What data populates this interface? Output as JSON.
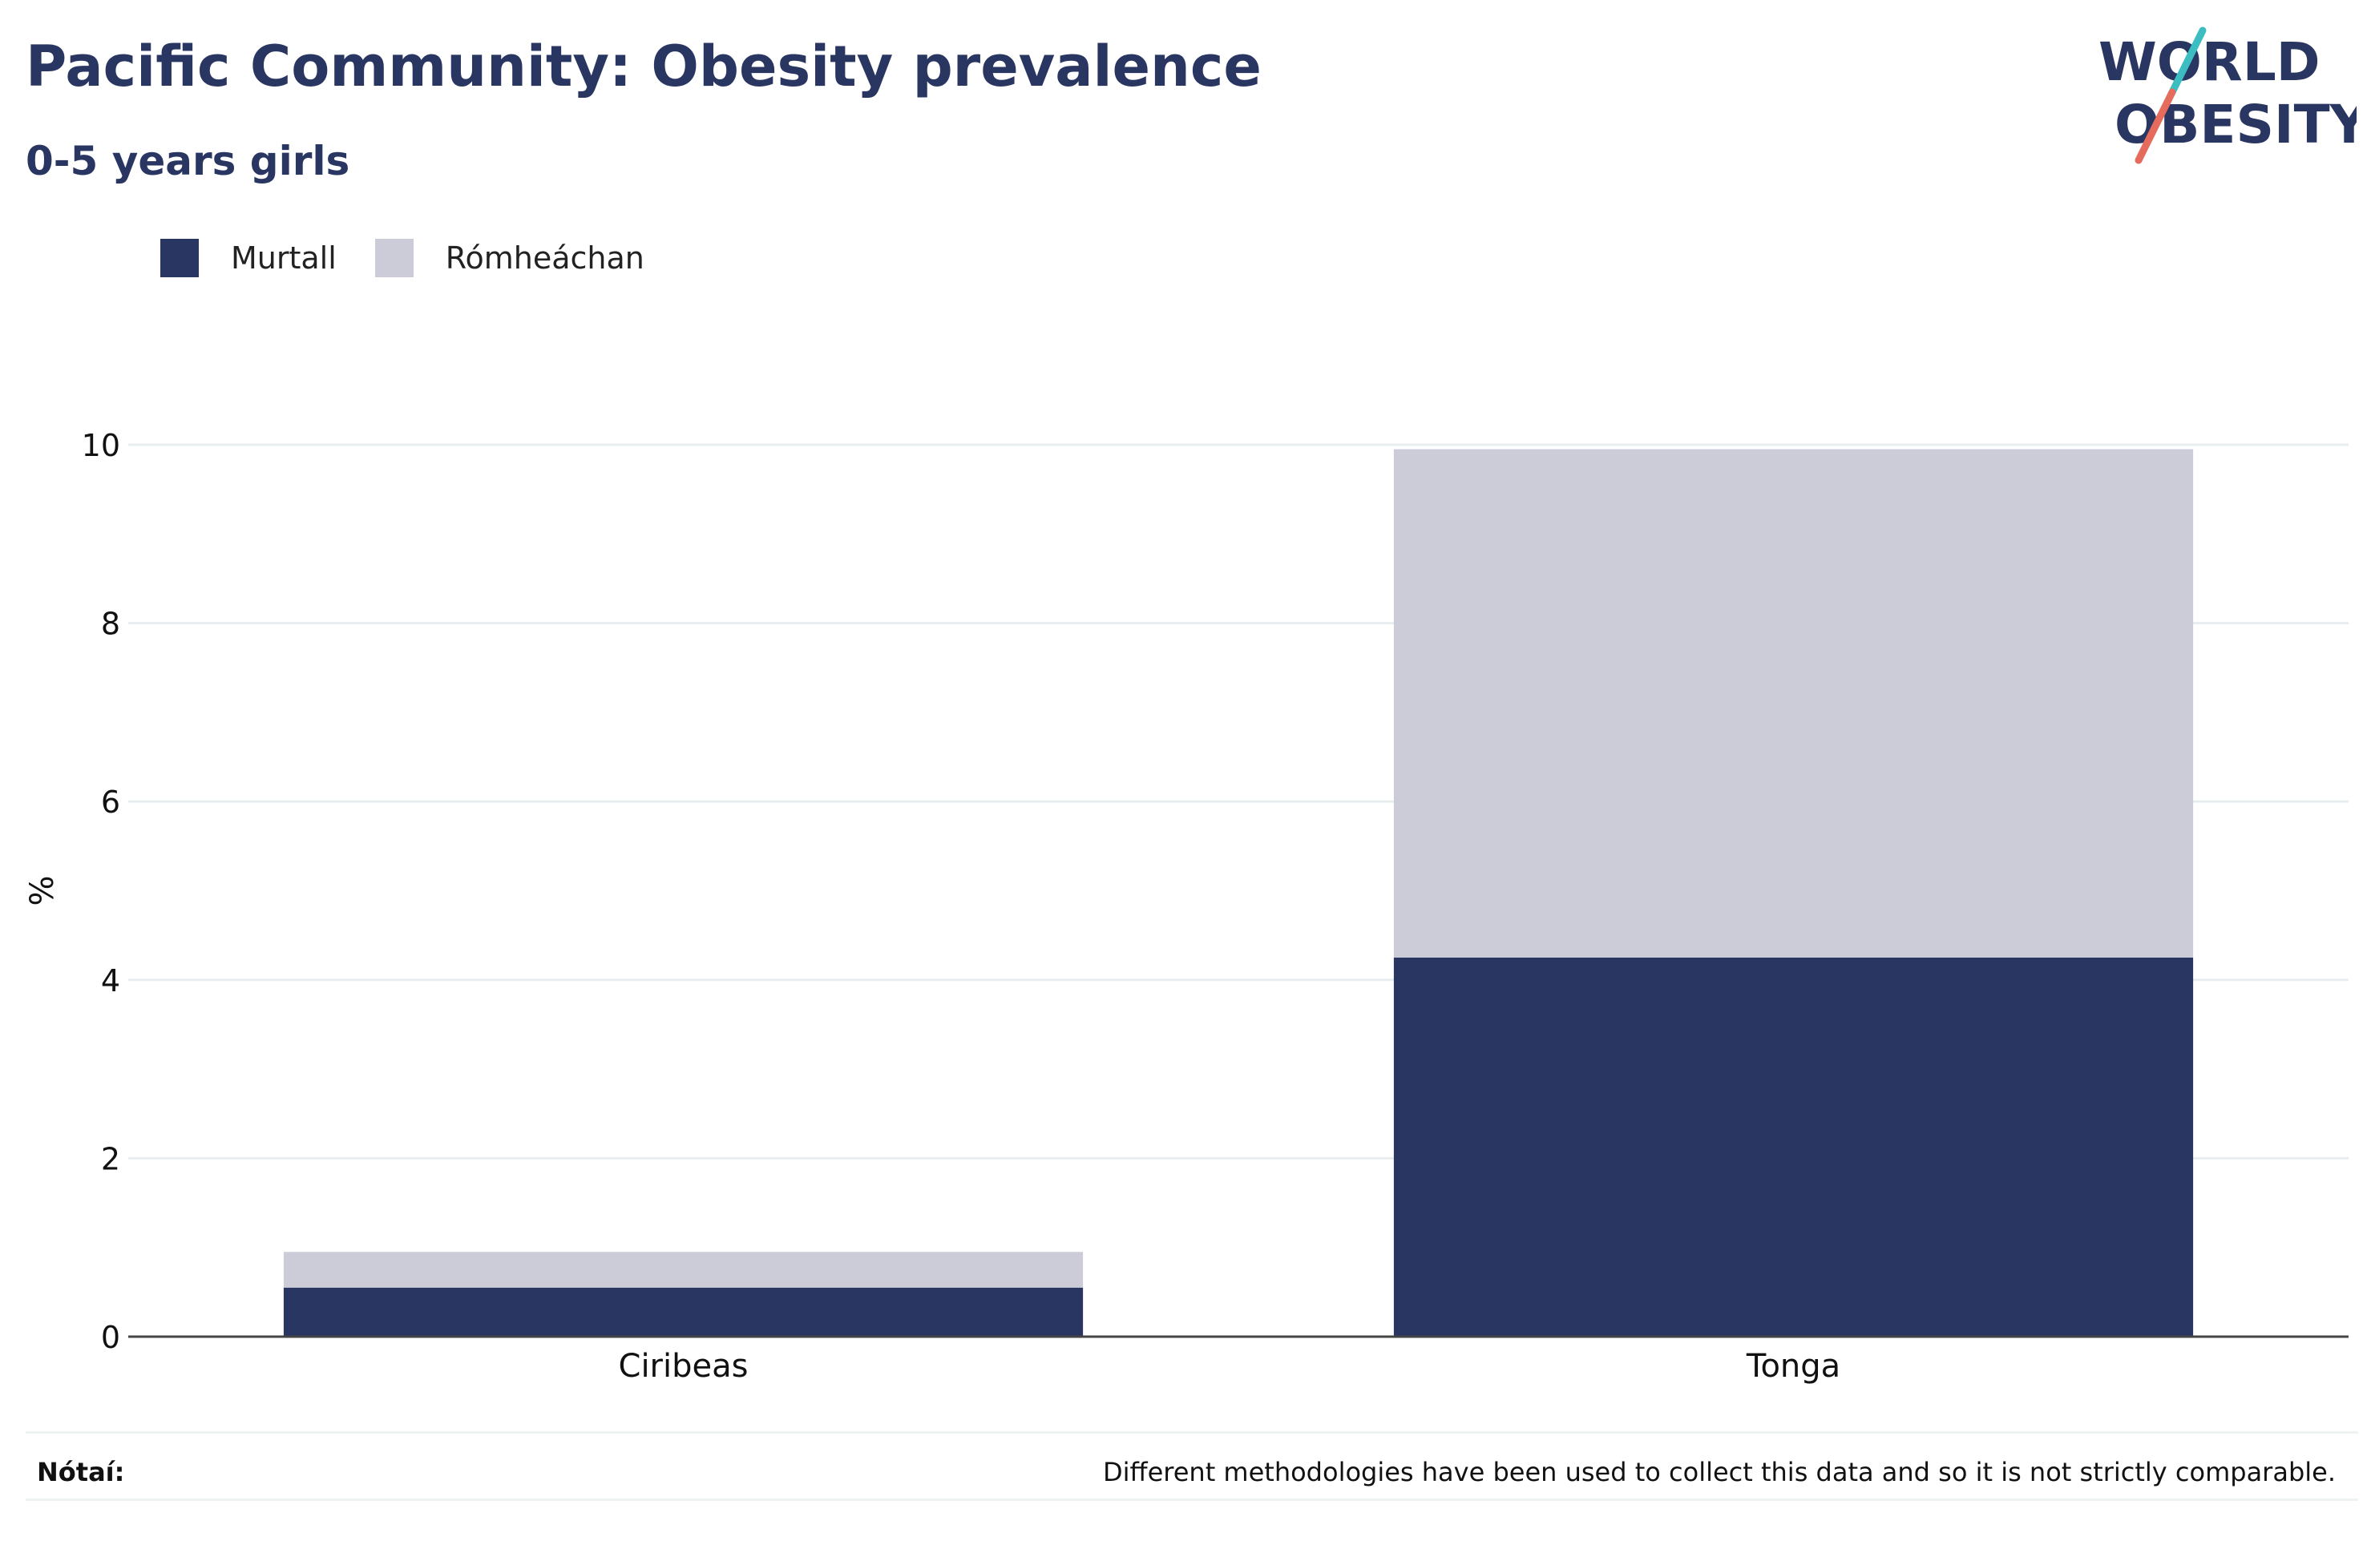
{
  "header": {
    "title": "Pacific Community: Obesity prevalence",
    "subtitle": "0-5 years girls"
  },
  "logo": {
    "line1": "WORLD",
    "line2": "OBESITY",
    "name": "world-obesity-logo"
  },
  "legend": [
    {
      "label": "Murtall",
      "color": "#293661"
    },
    {
      "label": "Rómheáchan",
      "color": "#cbccd7"
    }
  ],
  "footer": {
    "note_label": "Nótaí:",
    "note_text": "Different methodologies have been used to collect this data and so it is not strictly comparable."
  },
  "chart_data": {
    "type": "bar",
    "stacked": true,
    "categories": [
      "Ciribeas",
      "Tonga"
    ],
    "series": [
      {
        "name": "Murtall",
        "values": [
          0.55,
          4.25
        ],
        "color": "#293661"
      },
      {
        "name": "Rómheáchan",
        "values": [
          0.4,
          5.7
        ],
        "color": "#cbccd7"
      }
    ],
    "ylabel": "%",
    "ylim": [
      0,
      10
    ],
    "yticks": [
      0,
      2,
      4,
      6,
      8,
      10
    ],
    "grid": true,
    "legend_position": "top-left"
  }
}
